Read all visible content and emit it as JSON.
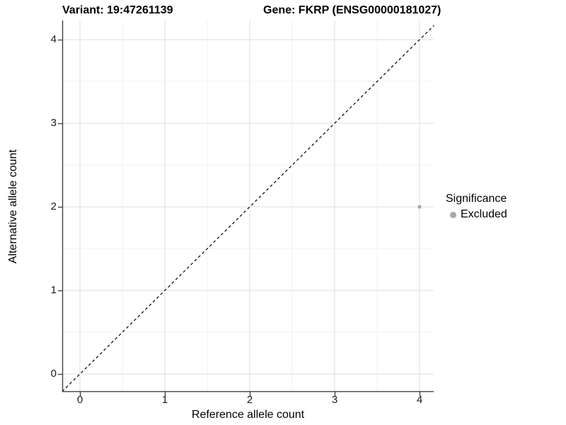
{
  "figure": {
    "title_left": "Variant: 19:47261139",
    "title_right": "Gene: FKRP (ENSG00000181027)"
  },
  "chart_data": {
    "type": "scatter",
    "title": "Variant: 19:47261139   Gene: FKRP (ENSG00000181027)",
    "xlabel": "Reference allele count",
    "ylabel": "Alternative allele count",
    "xlim": [
      -0.21,
      4.17
    ],
    "ylim": [
      -0.21,
      4.24
    ],
    "xticks": [
      0,
      1,
      2,
      3,
      4
    ],
    "yticks": [
      0,
      1,
      2,
      3,
      4
    ],
    "xticks_minor": [
      0.5,
      1.5,
      2.5,
      3.5
    ],
    "yticks_minor": [
      0.5,
      1.5,
      2.5,
      3.5
    ],
    "grid": "major_and_minor",
    "reference_line": {
      "type": "identity_y_equals_x",
      "style": "dashed",
      "color": "#000000"
    },
    "series": [
      {
        "name": "Excluded",
        "color": "#a9a9a9",
        "points": [
          {
            "x": 4,
            "y": 2
          }
        ]
      }
    ],
    "legend": {
      "title": "Significance",
      "position": "right",
      "items": [
        {
          "label": "Excluded",
          "color": "#a9a9a9"
        }
      ]
    }
  },
  "colors": {
    "background": "#ffffff",
    "grid_major": "#e3e3e3",
    "grid_minor": "#f1f1f1",
    "axis_line": "#404040",
    "tick_mark": "#333333",
    "text": "#000000",
    "point": "#a9a9a9"
  }
}
